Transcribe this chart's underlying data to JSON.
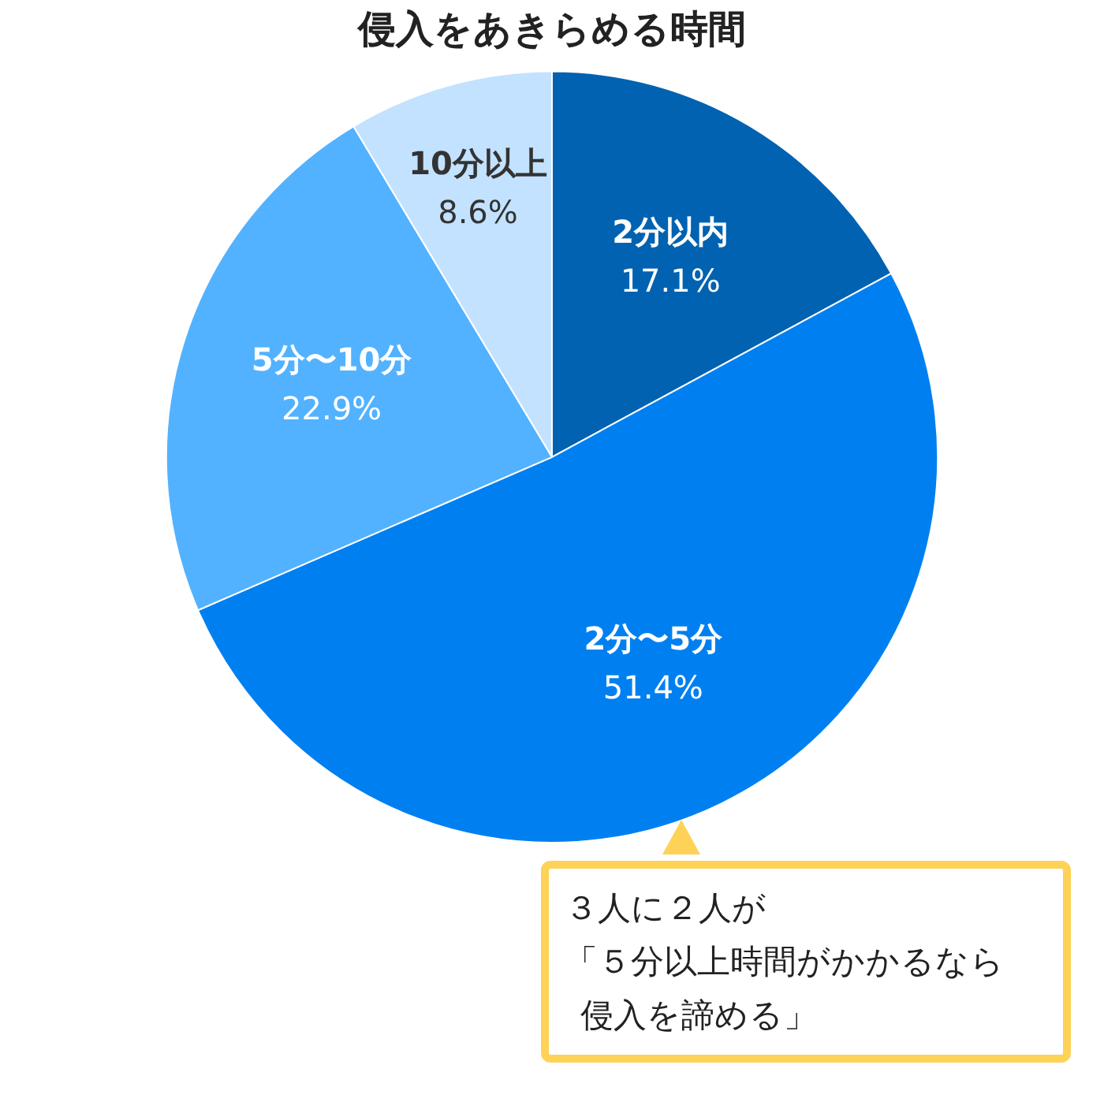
{
  "chart_data": {
    "type": "pie",
    "title": "侵入をあきらめる時間",
    "categories": [
      "2分以内",
      "2分〜5分",
      "5分〜10分",
      "10分以上"
    ],
    "values": [
      17.1,
      51.4,
      22.9,
      8.6
    ],
    "value_labels": [
      "17.1%",
      "51.4%",
      "22.9%",
      "8.6%"
    ],
    "colors": [
      "#0062b0",
      "#0080f0",
      "#52b2ff",
      "#c2e2ff"
    ],
    "legend": false,
    "annotations": [
      "３人に２人が",
      "「５分以上時間がかかるなら",
      "侵入を諦める」"
    ]
  }
}
